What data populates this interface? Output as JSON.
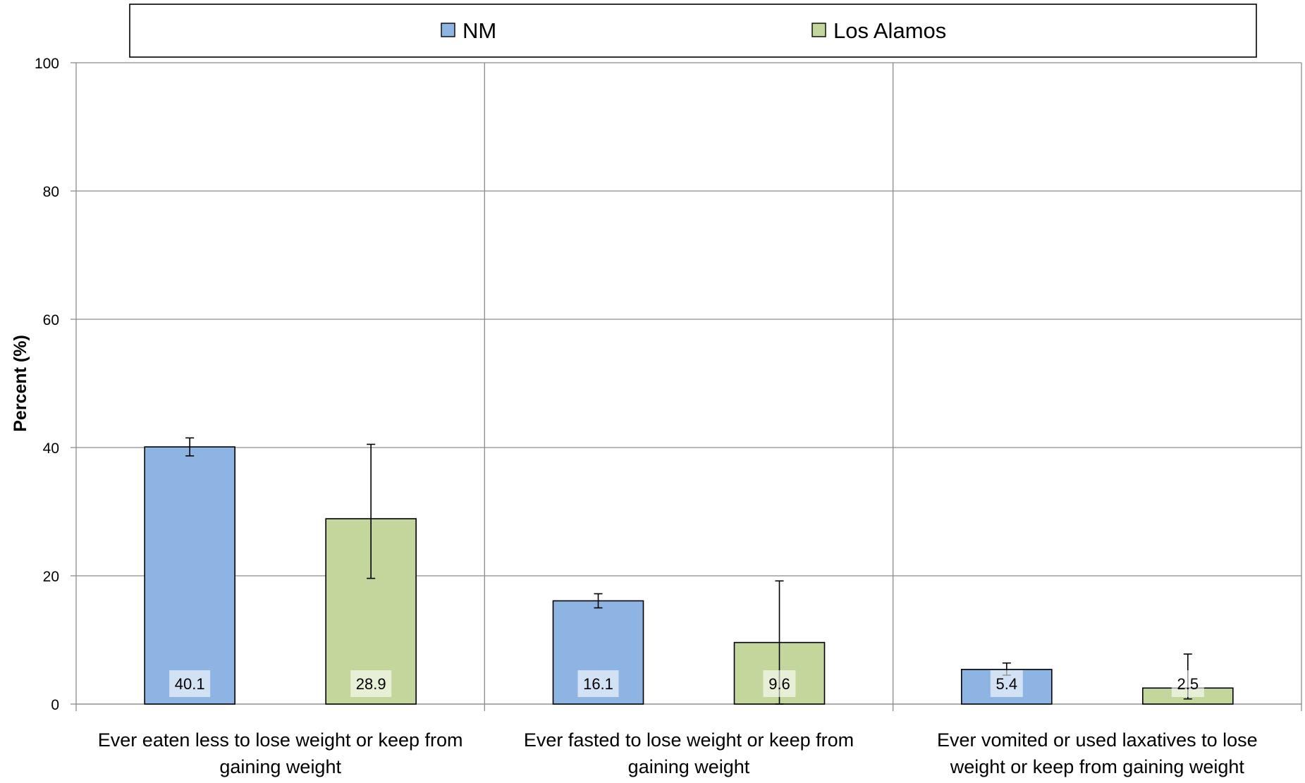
{
  "chart_data": {
    "type": "bar",
    "categories": [
      [
        "Ever eaten less to lose weight or keep from",
        "gaining weight"
      ],
      [
        "Ever fasted to lose weight or keep from",
        "gaining weight"
      ],
      [
        "Ever vomited or used laxatives to lose",
        "weight or keep from gaining weight"
      ]
    ],
    "series": [
      {
        "name": "NM",
        "color": "#8EB4E3",
        "values": [
          40.1,
          16.1,
          5.4
        ],
        "value_labels": [
          "40.1",
          "16.1",
          "5.4"
        ],
        "error_low": [
          38.7,
          15.0,
          4.5
        ],
        "error_high": [
          41.5,
          17.2,
          6.4
        ]
      },
      {
        "name": "Los Alamos",
        "color": "#C3D69B",
        "values": [
          28.9,
          9.6,
          2.5
        ],
        "value_labels": [
          "28.9",
          "9.6",
          "2.5"
        ],
        "error_low": [
          19.6,
          0.0,
          0.8
        ],
        "error_high": [
          40.5,
          19.2,
          7.8
        ]
      }
    ],
    "title": "",
    "xlabel": "",
    "ylabel": "Percent (%)",
    "ylim": [
      0,
      100
    ],
    "yticks": [
      0,
      20,
      40,
      60,
      80,
      100
    ],
    "grid": true,
    "legend_position": "top"
  }
}
